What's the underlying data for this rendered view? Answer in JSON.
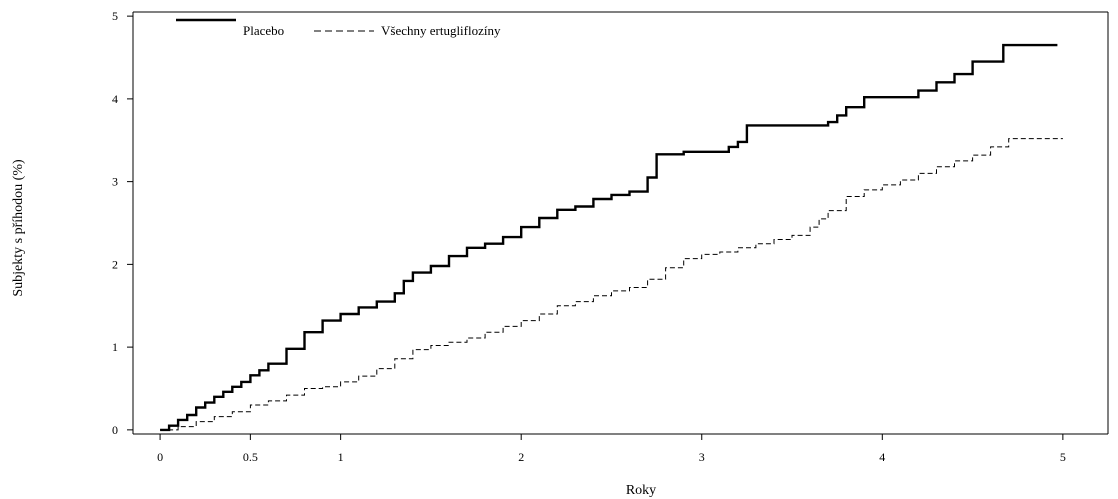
{
  "chart_data": {
    "type": "line",
    "step": true,
    "title": "",
    "xlabel": "Roky",
    "ylabel": "Subjekty s příhodou (%)",
    "xlim": [
      -0.15,
      5.25
    ],
    "ylim": [
      -0.05,
      5.05
    ],
    "xticks": [
      0,
      0.5,
      1,
      2,
      3,
      4,
      5
    ],
    "xtick_labels": [
      "0",
      "0.5",
      "1",
      "2",
      "3",
      "4",
      "5"
    ],
    "yticks": [
      0,
      1,
      2,
      3,
      4,
      5
    ],
    "ytick_labels": [
      "0",
      "1",
      "2",
      "3",
      "4",
      "5"
    ],
    "grid": false,
    "legend_position": "top-left",
    "series": [
      {
        "name": "Placebo",
        "style": "solid",
        "color": "#000000",
        "x": [
          0,
          0.05,
          0.1,
          0.15,
          0.2,
          0.25,
          0.3,
          0.35,
          0.4,
          0.45,
          0.5,
          0.55,
          0.6,
          0.7,
          0.8,
          0.9,
          1.0,
          1.1,
          1.2,
          1.3,
          1.35,
          1.4,
          1.5,
          1.6,
          1.7,
          1.8,
          1.9,
          2.0,
          2.1,
          2.2,
          2.3,
          2.4,
          2.5,
          2.6,
          2.7,
          2.75,
          2.9,
          3.1,
          3.15,
          3.2,
          3.25,
          3.4,
          3.6,
          3.7,
          3.75,
          3.8,
          3.9,
          4.0,
          4.1,
          4.2,
          4.3,
          4.4,
          4.5,
          4.6,
          4.67,
          4.8,
          4.97
        ],
        "y": [
          0,
          0.05,
          0.12,
          0.18,
          0.27,
          0.33,
          0.4,
          0.46,
          0.52,
          0.58,
          0.66,
          0.72,
          0.8,
          0.98,
          1.18,
          1.32,
          1.4,
          1.48,
          1.55,
          1.65,
          1.8,
          1.9,
          1.98,
          2.1,
          2.2,
          2.25,
          2.33,
          2.45,
          2.56,
          2.66,
          2.7,
          2.79,
          2.84,
          2.88,
          3.05,
          3.33,
          3.36,
          3.36,
          3.42,
          3.48,
          3.68,
          3.68,
          3.68,
          3.72,
          3.8,
          3.9,
          4.02,
          4.02,
          4.02,
          4.1,
          4.2,
          4.3,
          4.45,
          4.45,
          4.65,
          4.65,
          4.65
        ]
      },
      {
        "name": "Všechny ertugliflozíny",
        "style": "dashed",
        "color": "#000000",
        "x": [
          0,
          0.1,
          0.2,
          0.3,
          0.4,
          0.5,
          0.6,
          0.7,
          0.8,
          0.9,
          1.0,
          1.1,
          1.2,
          1.3,
          1.4,
          1.5,
          1.6,
          1.7,
          1.8,
          1.9,
          2.0,
          2.1,
          2.2,
          2.3,
          2.4,
          2.5,
          2.6,
          2.7,
          2.8,
          2.9,
          3.0,
          3.1,
          3.2,
          3.3,
          3.4,
          3.5,
          3.6,
          3.65,
          3.7,
          3.8,
          3.9,
          4.0,
          4.1,
          4.2,
          4.3,
          4.4,
          4.5,
          4.6,
          4.7,
          5.0
        ],
        "y": [
          0,
          0.04,
          0.1,
          0.16,
          0.22,
          0.3,
          0.35,
          0.42,
          0.5,
          0.52,
          0.58,
          0.65,
          0.74,
          0.86,
          0.97,
          1.02,
          1.06,
          1.11,
          1.18,
          1.25,
          1.32,
          1.4,
          1.5,
          1.55,
          1.62,
          1.68,
          1.72,
          1.82,
          1.96,
          2.07,
          2.12,
          2.15,
          2.2,
          2.25,
          2.3,
          2.35,
          2.45,
          2.55,
          2.65,
          2.82,
          2.9,
          2.96,
          3.02,
          3.1,
          3.18,
          3.25,
          3.32,
          3.42,
          3.52,
          3.52
        ]
      }
    ]
  }
}
